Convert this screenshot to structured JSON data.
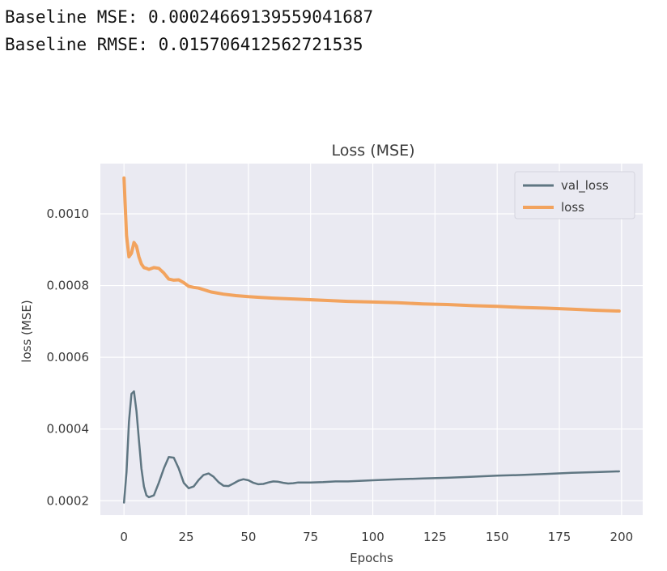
{
  "stats": {
    "mse_line": "Baseline MSE: 0.00024669139559041687",
    "rmse_line": "Baseline RMSE: 0.015706412562721535"
  },
  "chart_data": {
    "type": "line",
    "title": "Loss (MSE)",
    "xlabel": "Epochs",
    "ylabel": "loss (MSE)",
    "xlim": [
      -9.5,
      208.5
    ],
    "ylim": [
      0.00016,
      0.00114
    ],
    "xticks": [
      0,
      25,
      50,
      75,
      100,
      125,
      150,
      175,
      200
    ],
    "xtick_labels": [
      "0",
      "25",
      "50",
      "75",
      "100",
      "125",
      "150",
      "175",
      "200"
    ],
    "yticks": [
      0.0002,
      0.0004,
      0.0006,
      0.0008,
      0.001
    ],
    "ytick_labels": [
      "0.0002",
      "0.0004",
      "0.0006",
      "0.0008",
      "0.0010"
    ],
    "grid": true,
    "legend_position": "top-right",
    "colors": {
      "background": "#eaeaf2",
      "grid": "#ffffff",
      "val_loss": "#5f7682",
      "loss": "#f2a35e"
    },
    "series": [
      {
        "name": "val_loss",
        "x": [
          0,
          1,
          2,
          3,
          4,
          5,
          6,
          7,
          8,
          9,
          10,
          12,
          14,
          16,
          18,
          20,
          22,
          24,
          26,
          28,
          30,
          32,
          34,
          36,
          38,
          40,
          42,
          44,
          46,
          48,
          50,
          52,
          54,
          56,
          58,
          60,
          62,
          64,
          66,
          68,
          70,
          75,
          80,
          85,
          90,
          100,
          110,
          120,
          130,
          140,
          150,
          160,
          170,
          180,
          190,
          199
        ],
        "y": [
          0.000195,
          0.00028,
          0.00042,
          0.000498,
          0.000505,
          0.00045,
          0.00037,
          0.00029,
          0.00024,
          0.000215,
          0.00021,
          0.000215,
          0.00025,
          0.00029,
          0.000322,
          0.00032,
          0.00029,
          0.00025,
          0.000235,
          0.00024,
          0.000258,
          0.000272,
          0.000276,
          0.000267,
          0.000252,
          0.000242,
          0.000241,
          0.000248,
          0.000256,
          0.00026,
          0.000257,
          0.00025,
          0.000246,
          0.000247,
          0.000251,
          0.000254,
          0.000253,
          0.00025,
          0.000248,
          0.000249,
          0.000251,
          0.000251,
          0.000252,
          0.000254,
          0.000254,
          0.000257,
          0.00026,
          0.000262,
          0.000264,
          0.000267,
          0.00027,
          0.000272,
          0.000275,
          0.000278,
          0.00028,
          0.000282
        ]
      },
      {
        "name": "loss",
        "x": [
          0,
          1,
          2,
          3,
          4,
          5,
          6,
          7,
          8,
          9,
          10,
          12,
          14,
          16,
          18,
          20,
          22,
          24,
          26,
          28,
          30,
          35,
          40,
          45,
          50,
          55,
          60,
          70,
          80,
          90,
          100,
          110,
          120,
          130,
          140,
          150,
          160,
          170,
          180,
          190,
          199
        ],
        "y": [
          0.0011,
          0.00094,
          0.00088,
          0.00089,
          0.00092,
          0.00091,
          0.00088,
          0.00086,
          0.00085,
          0.000848,
          0.000845,
          0.00085,
          0.000848,
          0.000835,
          0.000818,
          0.000815,
          0.000816,
          0.000808,
          0.000798,
          0.000795,
          0.000793,
          0.000782,
          0.000776,
          0.000772,
          0.000769,
          0.000767,
          0.000765,
          0.000762,
          0.000759,
          0.000756,
          0.000754,
          0.000752,
          0.000749,
          0.000747,
          0.000744,
          0.000742,
          0.000739,
          0.000737,
          0.000734,
          0.000731,
          0.000729
        ]
      }
    ]
  }
}
